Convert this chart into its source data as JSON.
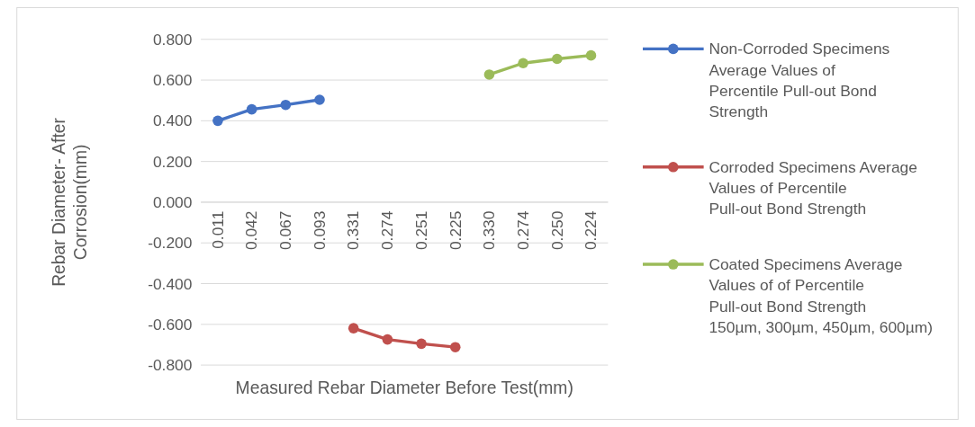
{
  "chart_data": {
    "type": "line",
    "xlabel": "Measured Rebar Diameter Before Test(mm)",
    "ylabel": "Rebar Diameter- After Corrosion(mm)",
    "categories": [
      "0.011",
      "0.042",
      "0.067",
      "0.093",
      "0.331",
      "0.274",
      "0.251",
      "0.225",
      "0.330",
      "0.274",
      "0.250",
      "0.224"
    ],
    "series": [
      {
        "name": "Non-Corroded Specimens Average Values of  Percentile Pull-out Bond Strength",
        "color": "#4472c4",
        "values": [
          0.4,
          0.456,
          0.478,
          0.503,
          null,
          null,
          null,
          null,
          null,
          null,
          null,
          null
        ]
      },
      {
        "name": "Corroded Specimens Average Values of  Percentile Pull-out Bond Strength",
        "color": "#c0504d",
        "values": [
          null,
          null,
          null,
          null,
          -0.619,
          -0.674,
          -0.695,
          -0.712,
          null,
          null,
          null,
          null
        ]
      },
      {
        "name": "Coated Specimens Average Values of of  Percentile Pull-out Bond Strength 150µm, 300µm, 450µm, 600µm)",
        "color": "#9bbb59",
        "values": [
          null,
          null,
          null,
          null,
          null,
          null,
          null,
          null,
          0.627,
          0.683,
          0.704,
          0.721
        ]
      }
    ],
    "ylim": [
      -0.8,
      0.8
    ],
    "yticks": [
      {
        "value": -0.8,
        "label": "-0.800"
      },
      {
        "value": -0.6,
        "label": "-0.600"
      },
      {
        "value": -0.4,
        "label": "-0.400"
      },
      {
        "value": -0.2,
        "label": "-0.200"
      },
      {
        "value": 0,
        "label": "0.000"
      },
      {
        "value": 0.2,
        "label": "0.200"
      },
      {
        "value": 0.4,
        "label": "0.400"
      },
      {
        "value": 0.6,
        "label": "0.600"
      },
      {
        "value": 0.8,
        "label": "0.800"
      }
    ],
    "grid": "y",
    "legend": "right",
    "marker": "circle",
    "line_style": "solid"
  }
}
